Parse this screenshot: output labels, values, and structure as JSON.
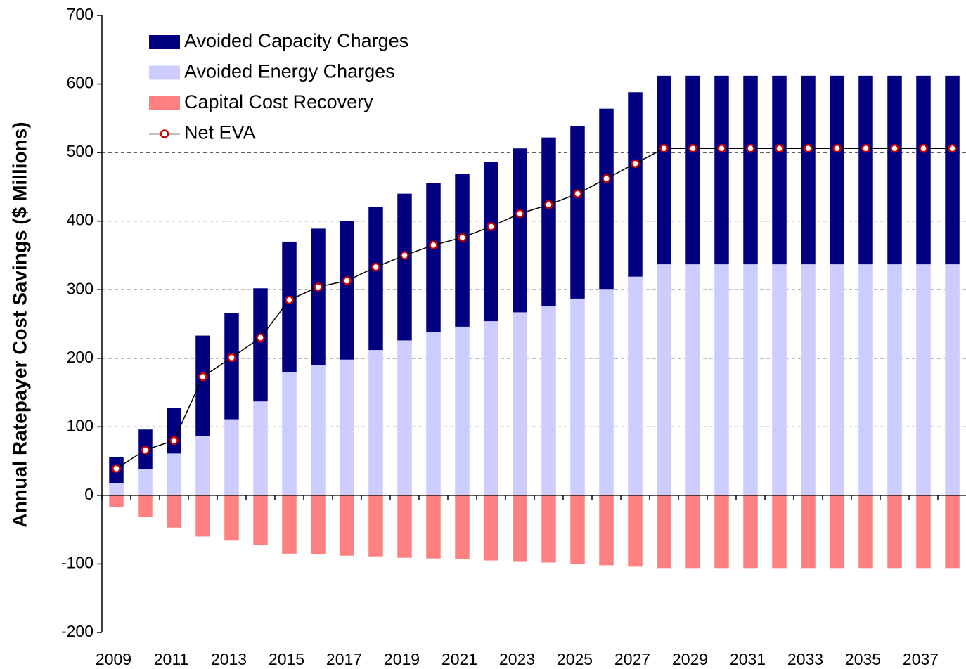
{
  "chart_data": {
    "type": "bar",
    "stacked": true,
    "y_label": "Annual Ratepayer Cost Savings ($ Millions)",
    "categories": [
      "2009",
      null,
      "2011",
      null,
      "2013",
      null,
      "2015",
      null,
      "2017",
      null,
      "2019",
      null,
      "2021",
      null,
      "2023",
      null,
      "2025",
      null,
      "2027",
      null,
      "2029",
      null,
      "2031",
      null,
      "2033",
      null,
      "2035",
      null,
      "2037",
      null
    ],
    "series": [
      {
        "name": "Avoided Capacity Charges",
        "color": "#000080",
        "type": "bar",
        "values": [
          38,
          58,
          67,
          147,
          155,
          165,
          190,
          199,
          202,
          209,
          214,
          218,
          223,
          232,
          239,
          246,
          252,
          263,
          269,
          275,
          275,
          275,
          275,
          275,
          275,
          275,
          275,
          275,
          275,
          275
        ]
      },
      {
        "name": "Avoided Energy Charges",
        "color": "#ccccff",
        "type": "bar",
        "values": [
          18,
          38,
          61,
          86,
          111,
          137,
          180,
          190,
          198,
          212,
          226,
          238,
          246,
          254,
          267,
          276,
          287,
          301,
          319,
          337,
          337,
          337,
          337,
          337,
          337,
          337,
          337,
          337,
          337,
          337
        ]
      },
      {
        "name": "Capital Cost Recovery",
        "color": "#ff8080",
        "type": "bar",
        "values": [
          -17,
          -31,
          -47,
          -60,
          -66,
          -73,
          -85,
          -86,
          -88,
          -89,
          -91,
          -92,
          -93,
          -95,
          -97,
          -98,
          -100,
          -102,
          -104,
          -106,
          -106,
          -106,
          -106,
          -106,
          -106,
          -106,
          -106,
          -106,
          -106,
          -106
        ]
      },
      {
        "name": "Net EVA",
        "color": "#000000",
        "marker_color": "#cc0000",
        "type": "line",
        "values": [
          39,
          66,
          80,
          173,
          201,
          230,
          285,
          304,
          313,
          333,
          350,
          365,
          376,
          392,
          411,
          424,
          440,
          462,
          484,
          506,
          506,
          506,
          506,
          506,
          506,
          506,
          506,
          506,
          506,
          506
        ]
      }
    ],
    "stack_order": [
      1,
      0
    ],
    "ylim": [
      -200,
      700
    ],
    "yticks": [
      -200,
      -100,
      0,
      100,
      200,
      300,
      400,
      500,
      600,
      700
    ],
    "grid": true,
    "legend": "top-left"
  }
}
